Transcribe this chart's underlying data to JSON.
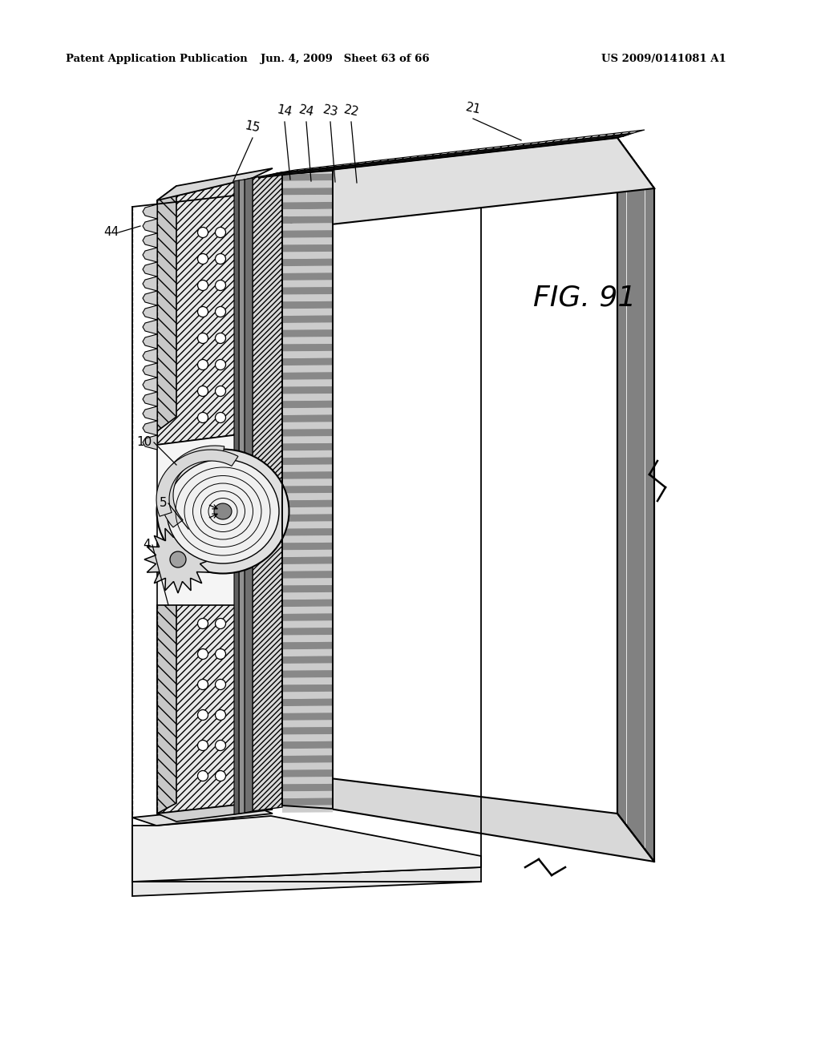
{
  "background_color": "#ffffff",
  "header_left": "Patent Application Publication",
  "header_middle": "Jun. 4, 2009   Sheet 63 of 66",
  "header_right": "US 2009/0141081 A1",
  "fig_label": "FIG. 91",
  "line_color": "#000000"
}
